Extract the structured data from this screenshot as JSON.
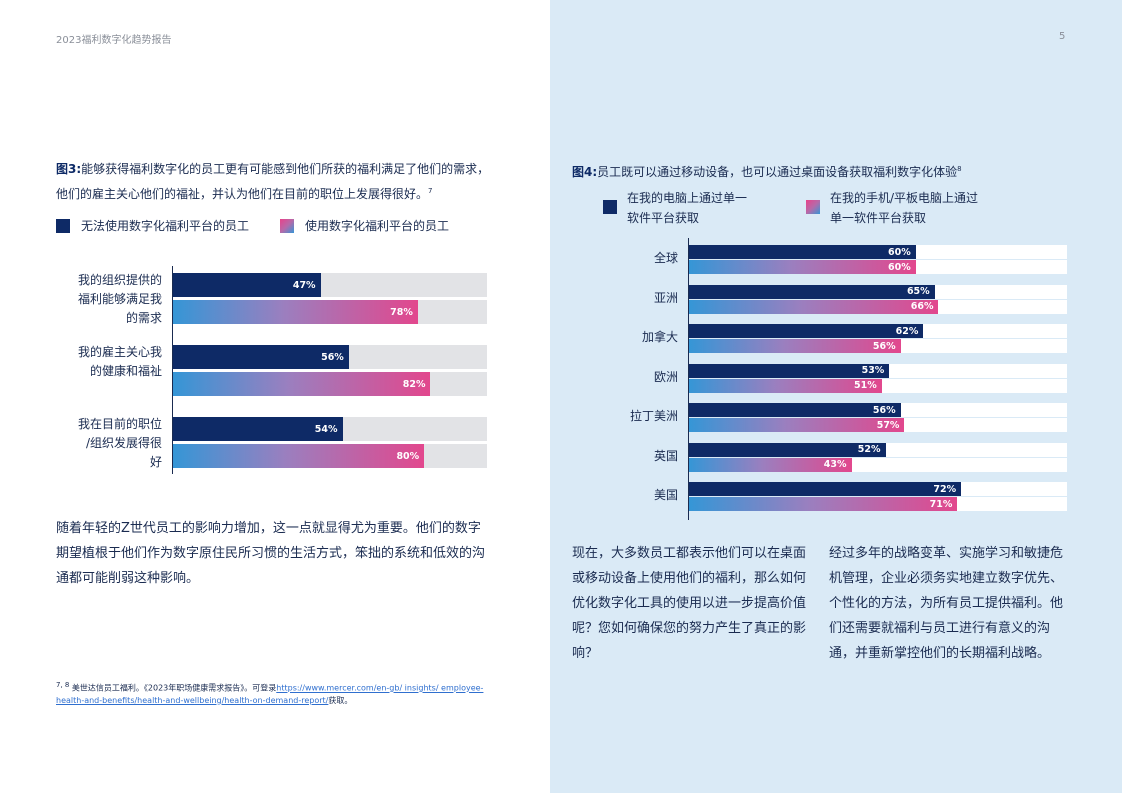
{
  "header": {
    "title": "2023福利数字化趋势报告",
    "page_number": "5"
  },
  "colors": {
    "navy": "#0e2a66",
    "pink": "#e2478d",
    "blue": "#3596d6",
    "panel": "#daeaf6"
  },
  "fig3": {
    "caption_label": "图3:",
    "caption_text": "能够获得福利数字化的员工更有可能感到他们所获的福利满足了他们的需求，他们的雇主关心他们的福祉，并认为他们在目前的职位上发展得很好。",
    "caption_ref": "7",
    "legend_a": "无法使用数字化福利平台的员工",
    "legend_b": "使用数字化福利平台的员工"
  },
  "fig4": {
    "caption_label": "图4:",
    "caption_text": "员工既可以通过移动设备，也可以通过桌面设备获取福利数字化体验",
    "caption_ref": "8",
    "legend_a": "在我的电脑上通过单一软件平台获取",
    "legend_b": "在我的手机/平板电脑上通过单一软件平台获取"
  },
  "chart_data": [
    {
      "type": "bar",
      "orientation": "horizontal",
      "categories": [
        "我的组织提供的福利能够满足我的需求",
        "我的雇主关心我的健康和福祉",
        "我在目前的职位/组织发展得很好"
      ],
      "series": [
        {
          "name": "无法使用数字化福利平台的员工",
          "values": [
            47,
            56,
            54
          ],
          "labels": [
            "47%",
            "56%",
            "54%"
          ]
        },
        {
          "name": "使用数字化福利平台的员工",
          "values": [
            78,
            82,
            80
          ],
          "labels": [
            "78%",
            "82%",
            "80%"
          ]
        }
      ],
      "xlim": [
        0,
        100
      ]
    },
    {
      "type": "bar",
      "orientation": "horizontal",
      "categories": [
        "全球",
        "亚洲",
        "加拿大",
        "欧洲",
        "拉丁美洲",
        "英国",
        "美国"
      ],
      "series": [
        {
          "name": "在我的电脑上通过单一软件平台获取",
          "values": [
            60,
            65,
            62,
            53,
            56,
            52,
            72
          ],
          "labels": [
            "60%",
            "65%",
            "62%",
            "53%",
            "56%",
            "52%",
            "72%"
          ]
        },
        {
          "name": "在我的手机/平板电脑上通过单一软件平台获取",
          "values": [
            60,
            66,
            56,
            51,
            57,
            43,
            71
          ],
          "labels": [
            "60%",
            "66%",
            "56%",
            "51%",
            "57%",
            "43%",
            "71%"
          ]
        }
      ],
      "xlim": [
        0,
        100
      ]
    }
  ],
  "body": {
    "left_para": "随着年轻的Z世代员工的影响力增加，这一点就显得尤为重要。他们的数字期望植根于他们作为数字原住民所习惯的生活方式，笨拙的系统和低效的沟通都可能削弱这种影响。",
    "right_para_1": "现在，大多数员工都表示他们可以在桌面或移动设备上使用他们的福利，那么如何优化数字化工具的使用以进一步提高价值呢？您如何确保您的努力产生了真正的影响？",
    "right_para_2": "经过多年的战略变革、实施学习和敏捷危机管理，企业必须务实地建立数字优先、个性化的方法，为所有员工提供福利。他们还需要就福利与员工进行有意义的沟通，并重新掌控他们的长期福利战略。"
  },
  "footnote": {
    "ref": "7, 8",
    "text": "美世达信员工福利。《2023年职场健康需求报告》。可登录",
    "link": "https://www.mercer.com/en-gb/ insights/ employee-health-and-benefits/health-and-wellbeing/health-on-demand-report/",
    "suffix": "获取。"
  }
}
